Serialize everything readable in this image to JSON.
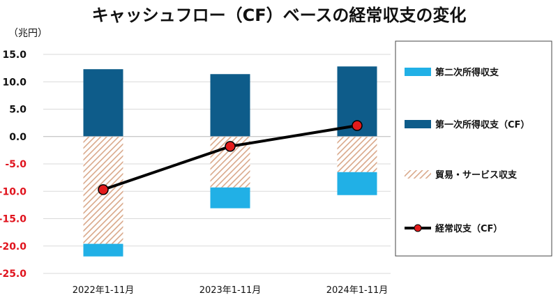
{
  "chart_data": {
    "type": "bar",
    "title": "キャッシュフロー（CF）ベースの経常収支の変化",
    "unit_label": "（兆円）",
    "ylim": [
      -25,
      15
    ],
    "yticks": [
      "15.0",
      "10.0",
      "5.0",
      "0.0",
      "-5.0",
      "-10.0",
      "-15.0",
      "-20.0",
      "-25.0"
    ],
    "tick_colors": {
      "positive": "#111111",
      "negative": "#e0141e"
    },
    "categories": [
      "2022年1-11月",
      "2023年1-11月",
      "2024年1-11月"
    ],
    "series": [
      {
        "name": "第二次所得収支",
        "kind": "bar",
        "color": "#21b0e6",
        "values": [
          -2.3,
          -3.8,
          -4.2
        ]
      },
      {
        "name": "第一次所得収支（CF）",
        "kind": "bar",
        "color": "#0e5c8a",
        "values": [
          12.3,
          11.4,
          12.8
        ]
      },
      {
        "name": "貿易・サービス収支",
        "kind": "bar",
        "pattern": "hatch",
        "color": "#d9a88a",
        "values": [
          -19.6,
          -9.3,
          -6.5
        ]
      },
      {
        "name": "経常収支（CF）",
        "kind": "line",
        "color": "#000000",
        "marker_color": "#e31b1b",
        "values": [
          -9.7,
          -1.8,
          2.0
        ]
      }
    ],
    "legend_position": "right"
  }
}
